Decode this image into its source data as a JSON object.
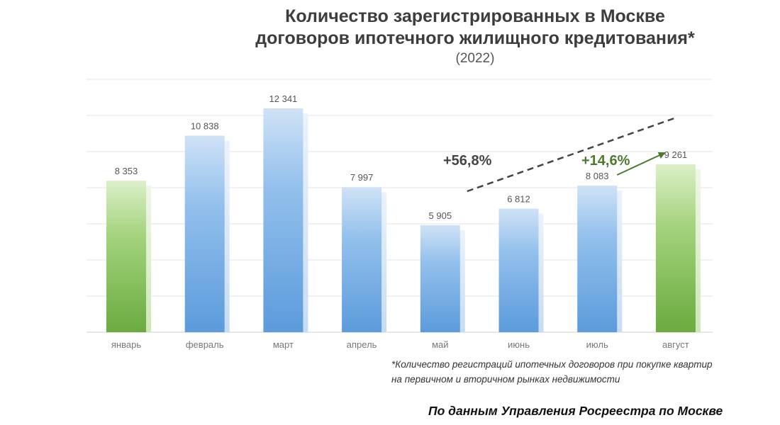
{
  "title_line1": "Количество зарегистрированных в Москве",
  "title_line2": "договоров ипотечного жилищного кредитования*",
  "subtitle": "(2022)",
  "footnote_line1": "*Количество регистраций ипотечных договоров при покупке квартир",
  "footnote_line2": "на первичном и вторичном рынках недвижимости",
  "source": "По данным Управления Росреестра по Москве",
  "chart_data": {
    "type": "bar",
    "categories": [
      "январь",
      "февраль",
      "март",
      "апрель",
      "май",
      "июнь",
      "июль",
      "август"
    ],
    "values": [
      8353,
      10838,
      12341,
      7997,
      5905,
      6812,
      8083,
      9261
    ],
    "value_labels": [
      "8 353",
      "10 838",
      "12 341",
      "7 997",
      "5 905",
      "6 812",
      "8 083",
      "9 261"
    ],
    "ylim": [
      0,
      12341
    ],
    "grid": true,
    "highlighted_categories": [
      "январь",
      "август"
    ],
    "annotations": [
      {
        "text": "+56,8%",
        "from": "май",
        "to": "август",
        "style": "dashed-trend",
        "color": "#444444"
      },
      {
        "text": "+14,6%",
        "from": "июль",
        "to": "август",
        "style": "arrow",
        "color": "#4e7a2e"
      }
    ],
    "colors": {
      "default": "#5f9fde",
      "highlight": "#7bbd4e"
    }
  }
}
